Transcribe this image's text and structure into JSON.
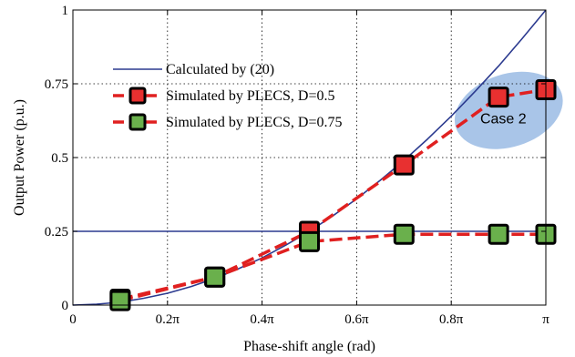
{
  "chart_data": {
    "type": "line",
    "xlabel": "Phase-shift angle (rad)",
    "ylabel": "Output Power (p.u.)",
    "xlim": [
      0,
      1
    ],
    "ylim": [
      0,
      1
    ],
    "x_ticks": [
      {
        "value": 0,
        "label": "0"
      },
      {
        "value": 0.2,
        "label": "0.2π"
      },
      {
        "value": 0.4,
        "label": "0.4π"
      },
      {
        "value": 0.6,
        "label": "0.6π"
      },
      {
        "value": 0.8,
        "label": "0.8π"
      },
      {
        "value": 1.0,
        "label": "π"
      }
    ],
    "y_ticks": [
      {
        "value": 0,
        "label": "0"
      },
      {
        "value": 0.25,
        "label": "0.25"
      },
      {
        "value": 0.5,
        "label": "0.5"
      },
      {
        "value": 0.75,
        "label": "0.75"
      },
      {
        "value": 1,
        "label": "1"
      }
    ],
    "grid": true,
    "legend_position": "upper-left",
    "series": [
      {
        "name": "Calculated by (20)",
        "style": "solid",
        "color": "#2b3a8f",
        "x": [
          0,
          0.05,
          0.1,
          0.15,
          0.2,
          0.25,
          0.3,
          0.35,
          0.4,
          0.45,
          0.5,
          0.55,
          0.6,
          0.65,
          0.7,
          0.75,
          0.8,
          0.85,
          0.9,
          0.95,
          1.0
        ],
        "y": [
          0,
          0.003,
          0.01,
          0.023,
          0.04,
          0.063,
          0.09,
          0.123,
          0.16,
          0.203,
          0.25,
          0.303,
          0.36,
          0.423,
          0.49,
          0.563,
          0.64,
          0.723,
          0.81,
          0.903,
          1.0
        ]
      },
      {
        "name": "Calculated by (20)",
        "style": "solid",
        "color": "#2b3a8f",
        "x": [
          0,
          1
        ],
        "y": [
          0.25,
          0.25
        ]
      },
      {
        "name": "Simulated by PLECS, D=0.5",
        "style": "dashed",
        "color": "#e02020",
        "marker": "square",
        "marker_color": "#e83030",
        "x": [
          0.1,
          0.3,
          0.5,
          0.7,
          0.9,
          1.0
        ],
        "y": [
          0.02,
          0.095,
          0.25,
          0.475,
          0.705,
          0.73
        ]
      },
      {
        "name": "Simulated by PLECS, D=0.75",
        "style": "dashed",
        "color": "#e02020",
        "marker": "square",
        "marker_color": "#6ab04c",
        "x": [
          0.1,
          0.3,
          0.5,
          0.7,
          0.9,
          1.0
        ],
        "y": [
          0.015,
          0.095,
          0.215,
          0.24,
          0.24,
          0.24
        ]
      }
    ],
    "annotations": [
      {
        "text": "Case 2",
        "x": 0.91,
        "y": 0.635,
        "ellipse_color": "#a9c5e8"
      }
    ]
  }
}
